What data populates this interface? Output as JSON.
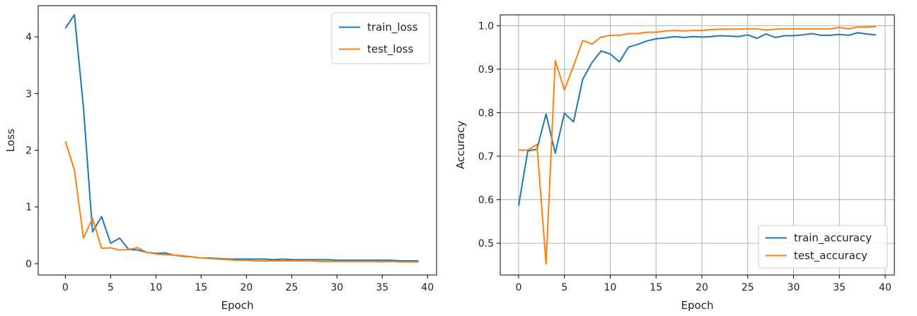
{
  "chart_data": [
    {
      "type": "line",
      "title": "",
      "xlabel": "Epoch",
      "ylabel": "Loss",
      "xlim": [
        -3,
        41
      ],
      "ylim": [
        -0.2,
        4.55
      ],
      "xticks": [
        0,
        5,
        10,
        15,
        20,
        25,
        30,
        35,
        40
      ],
      "yticks": [
        0,
        1,
        2,
        3,
        4
      ],
      "grid": false,
      "legend": "top-right",
      "x": [
        0,
        1,
        2,
        3,
        4,
        5,
        6,
        7,
        8,
        9,
        10,
        11,
        12,
        13,
        14,
        15,
        16,
        17,
        18,
        19,
        20,
        21,
        22,
        23,
        24,
        25,
        26,
        27,
        28,
        29,
        30,
        31,
        32,
        33,
        34,
        35,
        36,
        37,
        38,
        39
      ],
      "series": [
        {
          "name": "train_loss",
          "color": "#1f77b4",
          "values": [
            4.15,
            4.39,
            2.75,
            0.56,
            0.83,
            0.36,
            0.45,
            0.25,
            0.24,
            0.2,
            0.18,
            0.19,
            0.15,
            0.13,
            0.12,
            0.1,
            0.1,
            0.09,
            0.08,
            0.08,
            0.08,
            0.08,
            0.08,
            0.07,
            0.08,
            0.07,
            0.07,
            0.07,
            0.07,
            0.07,
            0.06,
            0.06,
            0.06,
            0.06,
            0.06,
            0.06,
            0.06,
            0.05,
            0.05,
            0.05
          ]
        },
        {
          "name": "test_loss",
          "color": "#ff7f0e",
          "values": [
            2.16,
            1.65,
            0.45,
            0.8,
            0.27,
            0.28,
            0.24,
            0.25,
            0.28,
            0.2,
            0.17,
            0.16,
            0.15,
            0.14,
            0.12,
            0.1,
            0.09,
            0.08,
            0.07,
            0.06,
            0.06,
            0.05,
            0.05,
            0.05,
            0.05,
            0.05,
            0.05,
            0.05,
            0.04,
            0.04,
            0.04,
            0.04,
            0.04,
            0.04,
            0.04,
            0.03,
            0.04,
            0.03,
            0.03,
            0.03
          ]
        }
      ]
    },
    {
      "type": "line",
      "title": "",
      "xlabel": "Epoch",
      "ylabel": "Accuracy",
      "xlim": [
        -2,
        41
      ],
      "ylim": [
        0.427,
        1.025
      ],
      "xticks": [
        0,
        5,
        10,
        15,
        20,
        25,
        30,
        35,
        40
      ],
      "yticks": [
        0.5,
        0.6,
        0.7,
        0.8,
        0.9,
        1.0
      ],
      "ytick_labels": [
        "0.5",
        "0.6",
        "0.7",
        "0.8",
        "0.9",
        "1.0"
      ],
      "grid": true,
      "legend": "bottom-right",
      "x": [
        0,
        1,
        2,
        3,
        4,
        5,
        6,
        7,
        8,
        9,
        10,
        11,
        12,
        13,
        14,
        15,
        16,
        17,
        18,
        19,
        20,
        21,
        22,
        23,
        24,
        25,
        26,
        27,
        28,
        29,
        30,
        31,
        32,
        33,
        34,
        35,
        36,
        37,
        38,
        39
      ],
      "series": [
        {
          "name": "train_accuracy",
          "color": "#1f77b4",
          "values": [
            0.586,
            0.712,
            0.716,
            0.797,
            0.707,
            0.799,
            0.779,
            0.877,
            0.915,
            0.942,
            0.935,
            0.917,
            0.951,
            0.957,
            0.965,
            0.97,
            0.972,
            0.975,
            0.973,
            0.975,
            0.974,
            0.975,
            0.977,
            0.976,
            0.975,
            0.979,
            0.971,
            0.981,
            0.973,
            0.977,
            0.977,
            0.979,
            0.982,
            0.978,
            0.978,
            0.98,
            0.978,
            0.984,
            0.981,
            0.979
          ]
        },
        {
          "name": "test_accuracy",
          "color": "#ff7f0e",
          "values": [
            0.714,
            0.714,
            0.727,
            0.452,
            0.92,
            0.852,
            0.908,
            0.966,
            0.958,
            0.974,
            0.978,
            0.978,
            0.982,
            0.982,
            0.985,
            0.985,
            0.988,
            0.989,
            0.988,
            0.989,
            0.989,
            0.991,
            0.992,
            0.992,
            0.992,
            0.993,
            0.993,
            0.99,
            0.992,
            0.993,
            0.993,
            0.993,
            0.993,
            0.993,
            0.993,
            0.996,
            0.993,
            0.997,
            0.997,
            0.998
          ]
        }
      ]
    }
  ]
}
